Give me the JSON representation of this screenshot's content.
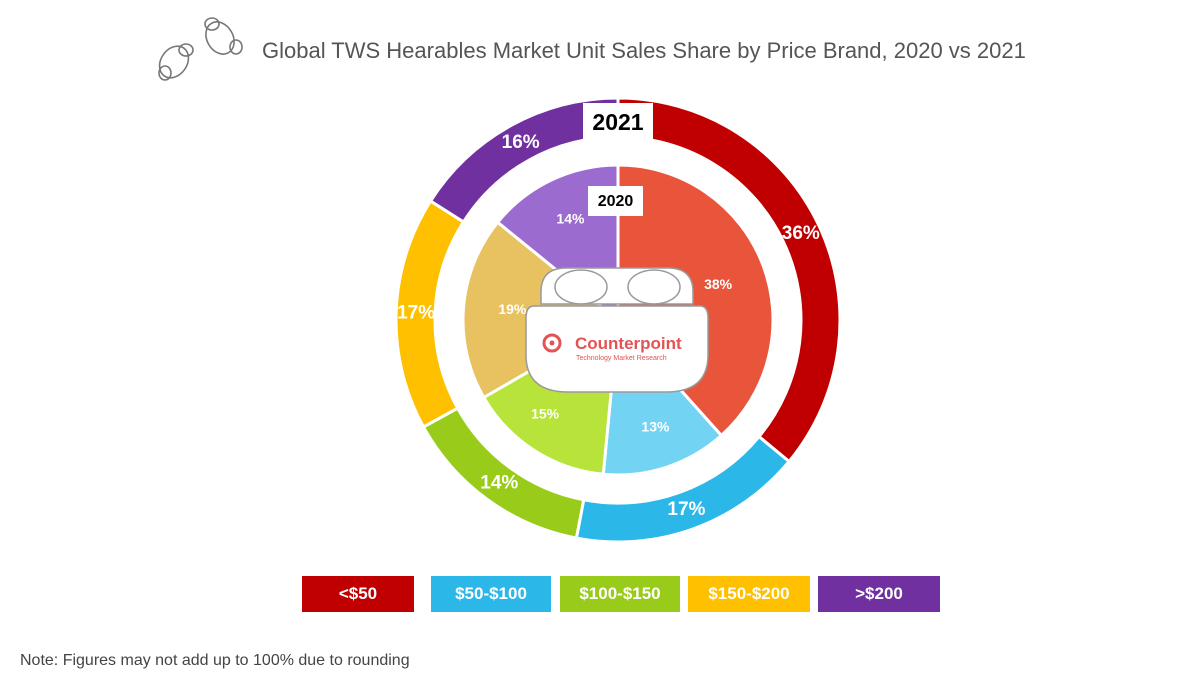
{
  "chart_data": {
    "type": "donut",
    "title": "Global TWS Hearables Market Unit Sales Share by Price Brand, 2020 vs 2021",
    "categories": [
      "<$50",
      "$50-$100",
      "$100-$150",
      "$150-$200",
      ">$200"
    ],
    "series": [
      {
        "name": "2021",
        "ring": "outer",
        "values": [
          36,
          17,
          14,
          17,
          16
        ],
        "labels": [
          "36%",
          "17%",
          "14%",
          "17%",
          "16%"
        ],
        "colors": [
          "#c00000",
          "#2bb7e8",
          "#99cc1a",
          "#ffc000",
          "#7030a0"
        ]
      },
      {
        "name": "2020",
        "ring": "inner",
        "values": [
          38,
          13,
          15,
          19,
          14
        ],
        "labels": [
          "38%",
          "13%",
          "15%",
          "19%",
          "14%"
        ],
        "colors": [
          "#e8553b",
          "#73d3f3",
          "#b7e33a",
          "#e8c261",
          "#9b6bd0"
        ]
      }
    ],
    "legend": {
      "placement": "bottom",
      "items": [
        {
          "label": "<$50",
          "color": "#c00000"
        },
        {
          "label": "$50-$100",
          "color": "#2bb7e8"
        },
        {
          "label": "$100-$150",
          "color": "#99cc1a"
        },
        {
          "label": "$150-$200",
          "color": "#ffc000"
        },
        {
          "label": ">$200",
          "color": "#7030a0"
        }
      ]
    }
  },
  "brand": {
    "name": "Counterpoint",
    "tagline": "Technology Market Research",
    "color": "#e35353"
  },
  "note": "Note: Figures may not add up to 100% due to rounding"
}
